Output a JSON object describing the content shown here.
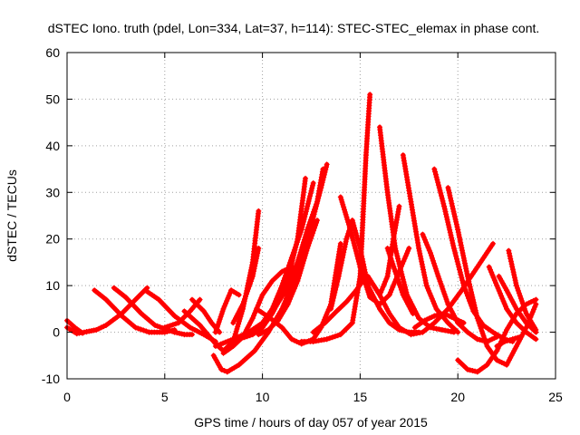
{
  "chart_data": {
    "type": "scatter",
    "title": "dSTEC Iono. truth (pdel, Lon=334, Lat=37, h=114): STEC-STEC_elemax in phase cont.",
    "xlabel": "GPS time / hours of day 057 of year 2015",
    "ylabel": "dSTEC  / TECUs",
    "xlim": [
      0,
      25
    ],
    "ylim": [
      -10,
      60
    ],
    "xticks": [
      0,
      5,
      10,
      15,
      20,
      25
    ],
    "yticks": [
      -10,
      0,
      10,
      20,
      30,
      40,
      50,
      60
    ],
    "grid": true,
    "marker": "+",
    "color": "#ff0000",
    "series": [
      {
        "x": [
          0.0,
          0.5,
          1.0,
          1.5,
          2.0,
          2.8,
          3.5,
          4.1
        ],
        "y": [
          1.0,
          -0.3,
          0.1,
          0.5,
          1.5,
          4.0,
          7.0,
          9.5
        ]
      },
      {
        "x": [
          0.0,
          0.4,
          0.8
        ],
        "y": [
          2.5,
          1.0,
          -0.2
        ]
      },
      {
        "x": [
          1.4,
          2.0,
          2.8,
          3.5,
          4.2,
          5.0,
          5.5
        ],
        "y": [
          9.0,
          7.0,
          3.5,
          1.0,
          0.0,
          0.0,
          0.5
        ]
      },
      {
        "x": [
          2.4,
          3.0,
          3.8,
          4.5,
          5.5,
          6.0,
          6.4
        ],
        "y": [
          9.5,
          7.5,
          4.0,
          1.5,
          0.0,
          -0.5,
          -0.5
        ]
      },
      {
        "x": [
          4.0,
          4.7,
          5.5,
          6.3,
          7.0,
          7.6
        ],
        "y": [
          9.0,
          7.0,
          3.5,
          1.0,
          -0.5,
          -2.0
        ]
      },
      {
        "x": [
          5.0,
          5.7,
          6.3,
          6.8
        ],
        "y": [
          1.0,
          2.0,
          4.5,
          7.0
        ]
      },
      {
        "x": [
          6.4,
          7.0,
          7.4,
          7.8
        ],
        "y": [
          7.0,
          4.5,
          2.0,
          0.0
        ]
      },
      {
        "x": [
          6.0,
          6.8,
          7.6,
          8.0,
          8.5,
          9.0,
          9.5,
          9.8
        ],
        "y": [
          4.5,
          1.5,
          -2.5,
          -4.0,
          -2.0,
          5.0,
          15.0,
          26.0
        ]
      },
      {
        "x": [
          7.5,
          7.9,
          8.2,
          8.8,
          9.6,
          10.3,
          11.0,
          11.5,
          12.0,
          12.5,
          13.0,
          13.3
        ],
        "y": [
          -5.0,
          -8.0,
          -8.5,
          -7.0,
          -4.0,
          0.0,
          5.0,
          10.0,
          16.0,
          23.0,
          31.0,
          36.0
        ]
      },
      {
        "x": [
          7.6,
          8.0,
          8.4,
          8.8
        ],
        "y": [
          0.0,
          5.0,
          9.0,
          8.0
        ]
      },
      {
        "x": [
          7.6,
          8.5,
          9.3,
          10.0,
          10.6,
          11.2,
          11.8,
          12.3,
          12.8,
          13.1
        ],
        "y": [
          -3.0,
          -1.5,
          0.0,
          2.0,
          5.0,
          9.0,
          15.0,
          22.0,
          28.0,
          35.0
        ]
      },
      {
        "x": [
          8.8,
          9.5,
          10.0,
          10.5,
          11.0,
          11.4,
          11.8,
          12.2
        ],
        "y": [
          -1.5,
          -0.5,
          1.0,
          4.0,
          8.0,
          13.0,
          20.0,
          33.0
        ]
      },
      {
        "x": [
          8.5,
          9.0,
          9.5,
          9.8
        ],
        "y": [
          2.0,
          6.0,
          12.0,
          18.0
        ]
      },
      {
        "x": [
          9.8,
          10.3,
          10.8,
          11.3,
          11.8,
          12.3,
          12.8
        ],
        "y": [
          -0.5,
          0.5,
          2.5,
          6.0,
          11.0,
          18.0,
          24.0
        ]
      },
      {
        "x": [
          10.0,
          10.5,
          11.0,
          11.5,
          12.0,
          12.6
        ],
        "y": [
          2.0,
          5.0,
          10.0,
          16.0,
          22.0,
          32.0
        ]
      },
      {
        "x": [
          8.0,
          8.5,
          9.0,
          9.5,
          10.0,
          10.5,
          11.0,
          11.5
        ],
        "y": [
          -4.5,
          -3.0,
          -1.0,
          3.0,
          8.0,
          11.0,
          13.0,
          14.0
        ]
      },
      {
        "x": [
          9.7,
          10.4,
          11.0,
          11.5,
          12.0,
          12.6,
          13.0,
          13.5,
          14.0
        ],
        "y": [
          5.0,
          3.0,
          1.0,
          -1.5,
          -2.5,
          -1.5,
          1.0,
          6.0,
          19.0
        ]
      },
      {
        "x": [
          12.0,
          12.6,
          13.3,
          14.0,
          14.6,
          15.0,
          15.3,
          15.5
        ],
        "y": [
          -2.0,
          -2.0,
          -1.5,
          -0.5,
          2.0,
          12.0,
          38.0,
          51.0
        ]
      },
      {
        "x": [
          12.6,
          13.2,
          13.8,
          14.3,
          14.8,
          15.3
        ],
        "y": [
          0.0,
          2.0,
          4.5,
          6.5,
          9.0,
          12.0
        ]
      },
      {
        "x": [
          13.5,
          13.9,
          14.3,
          14.6,
          15.0,
          15.4,
          16.0,
          16.5,
          17.0,
          17.5,
          18.0
        ],
        "y": [
          5.0,
          12.0,
          20.0,
          24.0,
          18.0,
          10.0,
          5.0,
          2.0,
          0.5,
          0.0,
          0.0
        ]
      },
      {
        "x": [
          14.0,
          14.5,
          15.0,
          15.5,
          16.0,
          16.5,
          17.0,
          17.5
        ],
        "y": [
          29.0,
          22.0,
          14.0,
          7.5,
          6.0,
          8.0,
          13.0,
          18.0
        ]
      },
      {
        "x": [
          15.3,
          15.7,
          16.0,
          16.4,
          16.7,
          17.0
        ],
        "y": [
          12.0,
          10.0,
          8.0,
          12.0,
          20.0,
          27.0
        ]
      },
      {
        "x": [
          16.0,
          16.4,
          16.8,
          17.4,
          18.0,
          18.6,
          19.2,
          19.8
        ],
        "y": [
          44.0,
          30.0,
          18.0,
          8.0,
          3.0,
          1.0,
          0.5,
          0.0
        ]
      },
      {
        "x": [
          16.4,
          16.8,
          17.2,
          17.7
        ],
        "y": [
          18.0,
          13.0,
          8.0,
          4.0
        ]
      },
      {
        "x": [
          17.2,
          17.6,
          18.0,
          18.4,
          18.9,
          19.5,
          20.0
        ],
        "y": [
          38.0,
          28.0,
          18.0,
          10.0,
          5.0,
          2.0,
          0.0
        ]
      },
      {
        "x": [
          15.4,
          16.0,
          16.5,
          17.0,
          17.6,
          18.2,
          18.8,
          19.5,
          20.2,
          21.0,
          21.8
        ],
        "y": [
          12.0,
          8.0,
          4.0,
          1.0,
          -0.5,
          0.0,
          2.0,
          5.0,
          9.0,
          14.0,
          19.0
        ]
      },
      {
        "x": [
          17.8,
          18.3,
          18.8,
          19.3,
          19.8,
          20.3
        ],
        "y": [
          1.0,
          2.5,
          3.5,
          4.0,
          3.0,
          2.0
        ]
      },
      {
        "x": [
          18.2,
          18.6,
          19.0,
          19.5,
          20.0,
          20.5,
          21.0,
          21.5,
          22.0
        ],
        "y": [
          21.0,
          17.0,
          12.0,
          6.0,
          2.0,
          0.0,
          -1.5,
          -2.0,
          -1.0
        ]
      },
      {
        "x": [
          18.8,
          19.3,
          19.8,
          20.3,
          20.8,
          21.3,
          21.8,
          22.4,
          22.8
        ],
        "y": [
          35.0,
          27.0,
          18.0,
          10.0,
          4.5,
          1.5,
          0.0,
          -1.5,
          -2.0
        ]
      },
      {
        "x": [
          19.5,
          20.0,
          20.5,
          21.0,
          21.5,
          22.0,
          22.5,
          23.0,
          23.5,
          24.0
        ],
        "y": [
          31.0,
          22.0,
          12.0,
          3.0,
          -3.0,
          -6.0,
          -7.0,
          -3.0,
          1.0,
          6.0
        ]
      },
      {
        "x": [
          20.0,
          20.5,
          21.0,
          21.5,
          22.0,
          22.5,
          23.0,
          23.5,
          24.0
        ],
        "y": [
          -6.0,
          -8.0,
          -8.5,
          -7.0,
          -4.0,
          0.5,
          4.0,
          6.0,
          7.0
        ]
      },
      {
        "x": [
          21.6,
          22.0,
          22.5,
          23.0,
          23.5,
          24.0
        ],
        "y": [
          14.0,
          10.0,
          5.0,
          2.0,
          0.0,
          -1.5
        ]
      },
      {
        "x": [
          22.1,
          22.5,
          23.0,
          23.5,
          24.0
        ],
        "y": [
          12.0,
          9.0,
          5.0,
          2.0,
          0.0
        ]
      },
      {
        "x": [
          22.6,
          23.0,
          23.5,
          24.0
        ],
        "y": [
          17.5,
          10.0,
          4.0,
          0.5
        ]
      },
      {
        "x": [
          22.0,
          22.4,
          22.8,
          23.2
        ],
        "y": [
          -3.0,
          -2.0,
          -1.5,
          -1.0
        ]
      }
    ]
  }
}
